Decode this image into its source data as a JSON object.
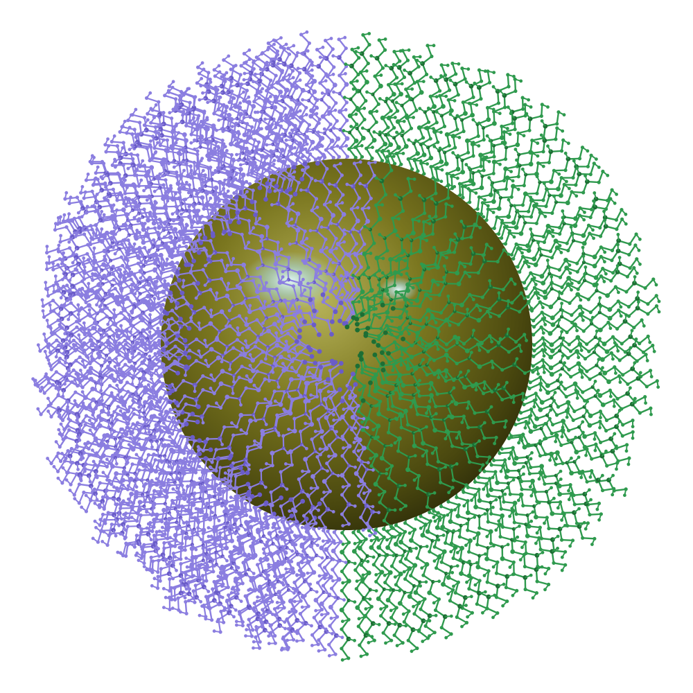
{
  "scene": {
    "subject": "nanoparticle-with-ligand-shell",
    "colors": {
      "background": "#ffffff",
      "core_light": "#9a9a3a",
      "core_mid": "#6b6a1c",
      "core_dark": "#3d3c0c",
      "highlight": "#cfeef2",
      "ligand_purple": "#8b7ee0",
      "ligand_purple_dark": "#6a5cc8",
      "ligand_green": "#2f9a4e",
      "ligand_green_dark": "#1d6e34"
    }
  }
}
